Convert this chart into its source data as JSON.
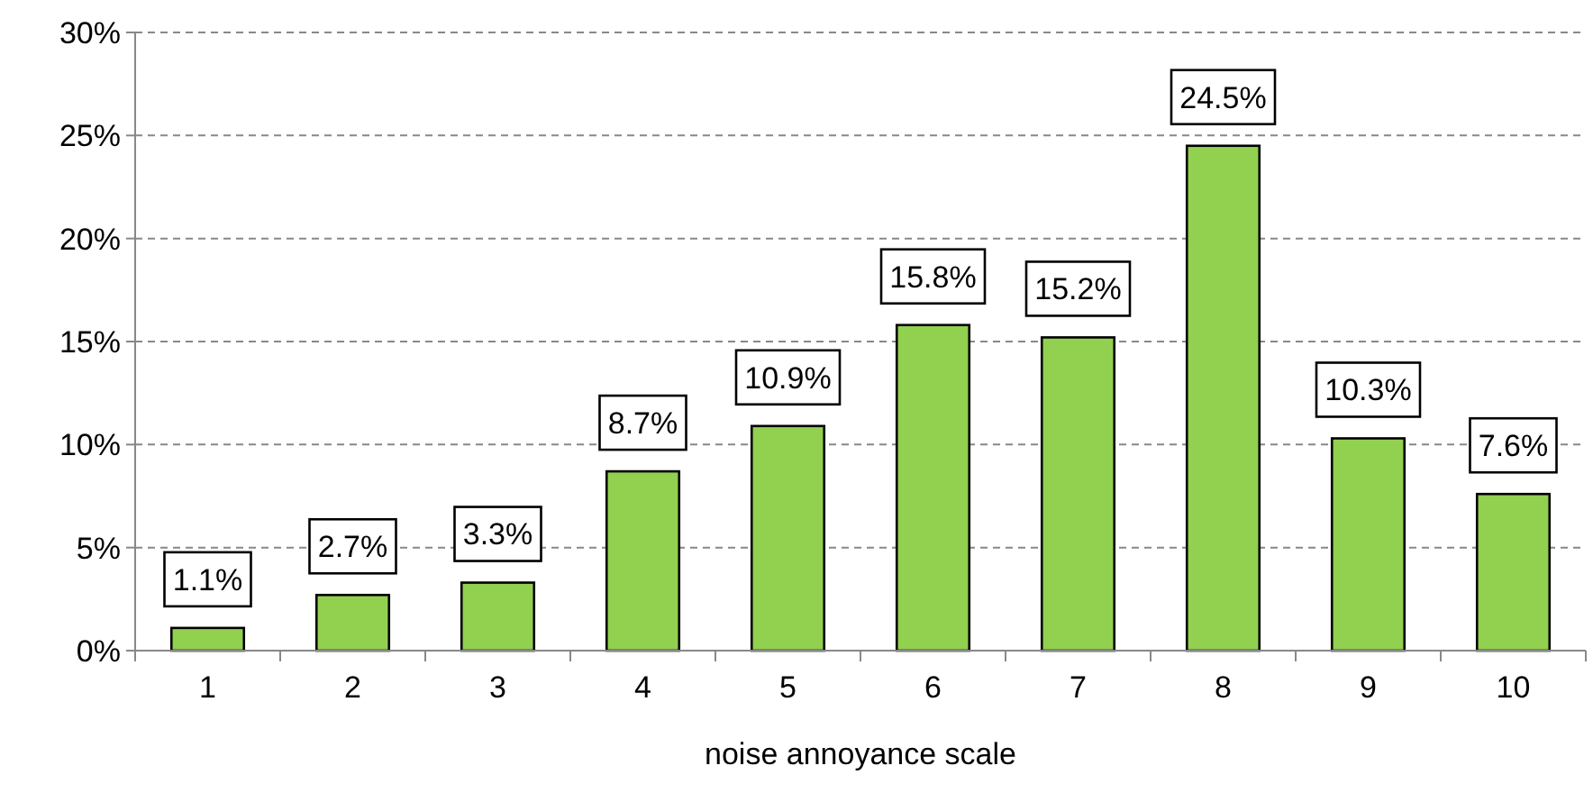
{
  "chart_data": {
    "type": "bar",
    "xlabel": "noise annoyance scale",
    "categories": [
      "1",
      "2",
      "3",
      "4",
      "5",
      "6",
      "7",
      "8",
      "9",
      "10"
    ],
    "values": [
      1.1,
      2.7,
      3.3,
      8.7,
      10.9,
      15.8,
      15.2,
      24.5,
      10.3,
      7.6
    ],
    "value_labels": [
      "1.1%",
      "2.7%",
      "3.3%",
      "8.7%",
      "10.9%",
      "15.8%",
      "15.2%",
      "24.5%",
      "10.3%",
      "7.6%"
    ],
    "color": "#92d050",
    "ylim": [
      0,
      30
    ],
    "yticks": [
      {
        "value": 0,
        "label": "0%"
      },
      {
        "value": 5,
        "label": "5%"
      },
      {
        "value": 10,
        "label": "10%"
      },
      {
        "value": 15,
        "label": "15%"
      },
      {
        "value": 20,
        "label": "20%"
      },
      {
        "value": 25,
        "label": "25%"
      },
      {
        "value": 30,
        "label": "30%"
      }
    ],
    "grid": "y"
  }
}
